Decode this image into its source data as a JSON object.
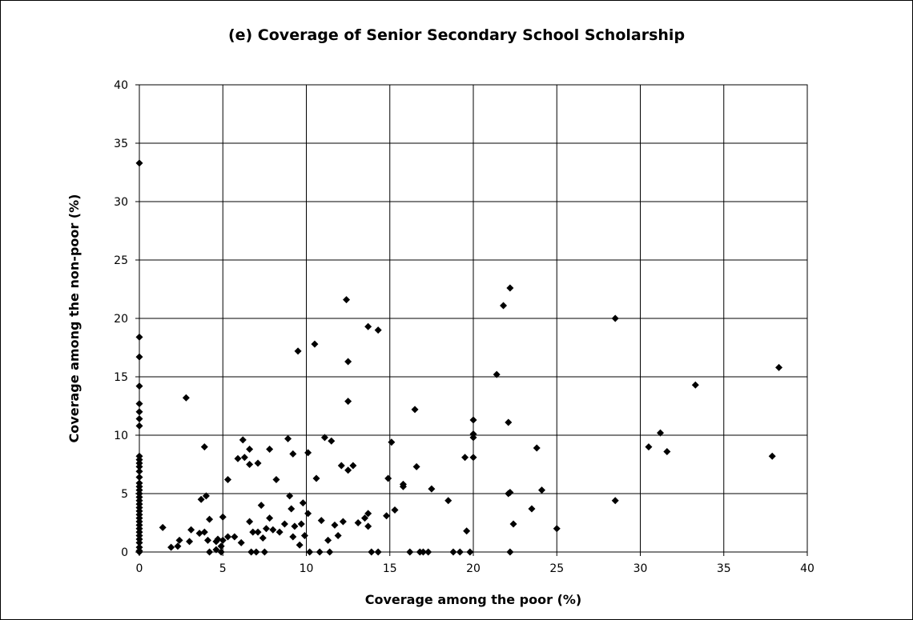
{
  "chart_data": {
    "type": "scatter",
    "title": "(e) Coverage of Senior Secondary School Scholarship",
    "xlabel": "Coverage among the poor (%)",
    "ylabel": "Coverage among the non-poor (%)",
    "xlim": [
      0,
      40
    ],
    "ylim": [
      0,
      40
    ],
    "xticks": [
      0,
      5,
      10,
      15,
      20,
      25,
      30,
      35,
      40
    ],
    "yticks": [
      0,
      5,
      10,
      15,
      20,
      25,
      30,
      35,
      40
    ],
    "grid": true,
    "marker": "diamond",
    "marker_color": "#000000",
    "points": [
      [
        0,
        33.3
      ],
      [
        0,
        18.4
      ],
      [
        0,
        16.7
      ],
      [
        0,
        14.2
      ],
      [
        0,
        12.7
      ],
      [
        0,
        12.0
      ],
      [
        0,
        11.4
      ],
      [
        0,
        10.8
      ],
      [
        0,
        8.2
      ],
      [
        0,
        7.9
      ],
      [
        0,
        7.6
      ],
      [
        0,
        7.3
      ],
      [
        0,
        6.9
      ],
      [
        0,
        6.4
      ],
      [
        0,
        5.9
      ],
      [
        0,
        5.6
      ],
      [
        0,
        5.3
      ],
      [
        0,
        5.0
      ],
      [
        0,
        4.7
      ],
      [
        0,
        4.4
      ],
      [
        0,
        4.1
      ],
      [
        0,
        3.8
      ],
      [
        0,
        3.5
      ],
      [
        0,
        3.2
      ],
      [
        0,
        2.9
      ],
      [
        0,
        2.6
      ],
      [
        0,
        2.3
      ],
      [
        0,
        2.0
      ],
      [
        0,
        1.7
      ],
      [
        0,
        1.4
      ],
      [
        0,
        1.1
      ],
      [
        0,
        0.8
      ],
      [
        0,
        0.4
      ],
      [
        0,
        0.1
      ],
      [
        0,
        0
      ],
      [
        1.4,
        2.1
      ],
      [
        1.9,
        0.4
      ],
      [
        2.3,
        0.5
      ],
      [
        2.4,
        1.0
      ],
      [
        2.8,
        13.2
      ],
      [
        3.0,
        0.9
      ],
      [
        3.1,
        1.9
      ],
      [
        3.6,
        1.6
      ],
      [
        3.7,
        4.5
      ],
      [
        3.9,
        9.0
      ],
      [
        3.9,
        1.7
      ],
      [
        4.0,
        4.8
      ],
      [
        4.1,
        1.0
      ],
      [
        4.2,
        2.8
      ],
      [
        4.2,
        0.0
      ],
      [
        4.6,
        0.2
      ],
      [
        4.6,
        0.9
      ],
      [
        4.7,
        1.1
      ],
      [
        4.9,
        0.5
      ],
      [
        4.9,
        0.0
      ],
      [
        5.0,
        3.0
      ],
      [
        5.0,
        1.0
      ],
      [
        5.3,
        6.2
      ],
      [
        5.3,
        1.3
      ],
      [
        5.7,
        1.3
      ],
      [
        5.9,
        8.0
      ],
      [
        6.1,
        0.8
      ],
      [
        6.2,
        9.6
      ],
      [
        6.3,
        8.1
      ],
      [
        6.6,
        8.8
      ],
      [
        6.6,
        2.6
      ],
      [
        6.6,
        7.5
      ],
      [
        6.7,
        0.0
      ],
      [
        6.8,
        1.7
      ],
      [
        7.0,
        0.0
      ],
      [
        7.1,
        7.6
      ],
      [
        7.1,
        1.7
      ],
      [
        7.3,
        4.0
      ],
      [
        7.4,
        1.2
      ],
      [
        7.5,
        0.0
      ],
      [
        7.6,
        2.0
      ],
      [
        7.8,
        8.8
      ],
      [
        7.8,
        2.9
      ],
      [
        8.0,
        1.9
      ],
      [
        8.2,
        6.2
      ],
      [
        8.4,
        1.7
      ],
      [
        8.7,
        2.4
      ],
      [
        8.9,
        9.7
      ],
      [
        9.0,
        4.8
      ],
      [
        9.1,
        3.7
      ],
      [
        9.2,
        8.4
      ],
      [
        9.2,
        1.3
      ],
      [
        9.3,
        2.2
      ],
      [
        9.5,
        17.2
      ],
      [
        9.6,
        0.6
      ],
      [
        9.7,
        2.4
      ],
      [
        9.8,
        4.2
      ],
      [
        9.9,
        1.4
      ],
      [
        10.1,
        8.5
      ],
      [
        10.1,
        3.3
      ],
      [
        10.2,
        0.0
      ],
      [
        10.5,
        17.8
      ],
      [
        10.6,
        6.3
      ],
      [
        10.8,
        0.0
      ],
      [
        10.9,
        2.7
      ],
      [
        11.1,
        9.8
      ],
      [
        11.3,
        1.0
      ],
      [
        11.4,
        0.0
      ],
      [
        11.5,
        9.5
      ],
      [
        11.7,
        2.3
      ],
      [
        11.9,
        1.4
      ],
      [
        12.1,
        7.4
      ],
      [
        12.2,
        2.6
      ],
      [
        12.4,
        21.6
      ],
      [
        12.5,
        7.0
      ],
      [
        12.5,
        16.3
      ],
      [
        12.5,
        12.9
      ],
      [
        12.8,
        7.4
      ],
      [
        13.1,
        2.5
      ],
      [
        13.5,
        2.9
      ],
      [
        13.7,
        19.3
      ],
      [
        13.7,
        3.3
      ],
      [
        13.7,
        2.2
      ],
      [
        13.9,
        0.0
      ],
      [
        14.3,
        19.0
      ],
      [
        14.3,
        0.0
      ],
      [
        14.8,
        3.1
      ],
      [
        14.9,
        6.3
      ],
      [
        15.1,
        9.4
      ],
      [
        15.3,
        3.6
      ],
      [
        15.8,
        5.8
      ],
      [
        15.8,
        5.6
      ],
      [
        16.2,
        0.0
      ],
      [
        16.5,
        12.2
      ],
      [
        16.6,
        7.3
      ],
      [
        16.8,
        0.0
      ],
      [
        17.0,
        0.0
      ],
      [
        17.3,
        0.0
      ],
      [
        17.5,
        5.4
      ],
      [
        18.5,
        4.4
      ],
      [
        18.8,
        0.0
      ],
      [
        19.2,
        0.0
      ],
      [
        19.5,
        8.1
      ],
      [
        19.6,
        1.8
      ],
      [
        19.8,
        0.0
      ],
      [
        20.0,
        8.1
      ],
      [
        20.0,
        9.8
      ],
      [
        20.0,
        10.1
      ],
      [
        20.0,
        11.3
      ],
      [
        21.4,
        15.2
      ],
      [
        21.8,
        21.1
      ],
      [
        22.1,
        11.1
      ],
      [
        22.1,
        5.0
      ],
      [
        22.2,
        22.6
      ],
      [
        22.2,
        0.0
      ],
      [
        22.2,
        5.1
      ],
      [
        22.4,
        2.4
      ],
      [
        23.5,
        3.7
      ],
      [
        23.8,
        8.9
      ],
      [
        24.1,
        5.3
      ],
      [
        25.0,
        2.0
      ],
      [
        28.5,
        20.0
      ],
      [
        28.5,
        4.4
      ],
      [
        30.5,
        9.0
      ],
      [
        31.2,
        10.2
      ],
      [
        31.6,
        8.6
      ],
      [
        33.3,
        14.3
      ],
      [
        37.9,
        8.2
      ],
      [
        38.3,
        15.8
      ]
    ]
  }
}
